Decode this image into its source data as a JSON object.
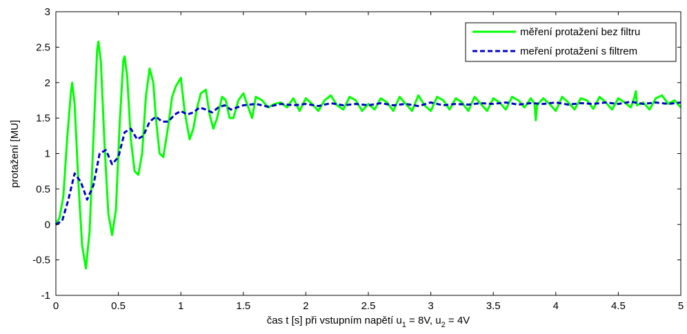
{
  "chart_data": {
    "type": "line",
    "title": "",
    "xlabel_parts": {
      "main": "čas t [s] při vstupním napětí u",
      "sub1": "1",
      "mid": " = 8V, u",
      "sub2": "2",
      "tail": " = 4V"
    },
    "ylabel": "protažení [MU]",
    "xlim": [
      0,
      5
    ],
    "ylim": [
      -1,
      3
    ],
    "xticks": [
      0,
      0.5,
      1,
      1.5,
      2,
      2.5,
      3,
      3.5,
      4,
      4.5,
      5
    ],
    "yticks": [
      -1,
      -0.5,
      0,
      0.5,
      1,
      1.5,
      2,
      2.5,
      3
    ],
    "xtick_labels": [
      "0",
      "0.5",
      "1",
      "1.5",
      "2",
      "2.5",
      "3",
      "3.5",
      "4",
      "4.5",
      "5"
    ],
    "ytick_labels": [
      "-1",
      "-0.5",
      "0",
      "0.5",
      "1",
      "1.5",
      "2",
      "2.5",
      "3"
    ],
    "grid": false,
    "legend_position": "top-right",
    "series": [
      {
        "name": "měření protažení bez filtru",
        "color": "#00ff00",
        "style": "solid",
        "x": [
          0,
          0.03,
          0.06,
          0.09,
          0.12,
          0.13,
          0.15,
          0.18,
          0.21,
          0.24,
          0.27,
          0.3,
          0.33,
          0.34,
          0.36,
          0.39,
          0.42,
          0.45,
          0.48,
          0.51,
          0.54,
          0.55,
          0.57,
          0.6,
          0.63,
          0.66,
          0.69,
          0.72,
          0.75,
          0.78,
          0.8,
          0.83,
          0.86,
          0.9,
          0.93,
          0.96,
          1.0,
          1.03,
          1.07,
          1.1,
          1.13,
          1.16,
          1.2,
          1.23,
          1.26,
          1.29,
          1.33,
          1.36,
          1.39,
          1.42,
          1.46,
          1.5,
          1.54,
          1.57,
          1.6,
          1.65,
          1.7,
          1.75,
          1.8,
          1.85,
          1.9,
          1.95,
          2.0,
          2.05,
          2.1,
          2.15,
          2.2,
          2.25,
          2.3,
          2.35,
          2.4,
          2.45,
          2.5,
          2.55,
          2.6,
          2.65,
          2.7,
          2.75,
          2.8,
          2.85,
          2.9,
          2.95,
          3.0,
          3.05,
          3.1,
          3.15,
          3.2,
          3.25,
          3.3,
          3.35,
          3.4,
          3.45,
          3.5,
          3.55,
          3.6,
          3.65,
          3.7,
          3.75,
          3.8,
          3.83,
          3.84,
          3.85,
          3.9,
          3.95,
          4.0,
          4.05,
          4.1,
          4.15,
          4.2,
          4.25,
          4.3,
          4.35,
          4.4,
          4.45,
          4.5,
          4.55,
          4.6,
          4.63,
          4.64,
          4.65,
          4.7,
          4.75,
          4.8,
          4.85,
          4.9,
          4.95,
          5.0
        ],
        "y": [
          0.0,
          0.1,
          0.4,
          1.2,
          1.85,
          2.0,
          1.7,
          0.6,
          -0.3,
          -0.62,
          -0.1,
          1.2,
          2.45,
          2.58,
          2.3,
          1.1,
          0.15,
          -0.15,
          0.2,
          1.4,
          2.32,
          2.37,
          2.1,
          1.2,
          0.75,
          0.7,
          1.0,
          1.8,
          2.2,
          2.0,
          1.5,
          1.0,
          0.95,
          1.4,
          1.8,
          1.95,
          2.07,
          1.6,
          1.2,
          1.35,
          1.65,
          1.85,
          1.9,
          1.55,
          1.35,
          1.5,
          1.8,
          1.75,
          1.5,
          1.5,
          1.75,
          1.85,
          1.65,
          1.5,
          1.8,
          1.75,
          1.65,
          1.7,
          1.72,
          1.65,
          1.78,
          1.6,
          1.78,
          1.7,
          1.6,
          1.75,
          1.82,
          1.68,
          1.62,
          1.8,
          1.75,
          1.6,
          1.7,
          1.62,
          1.78,
          1.72,
          1.6,
          1.8,
          1.7,
          1.6,
          1.82,
          1.68,
          1.6,
          1.8,
          1.75,
          1.62,
          1.78,
          1.72,
          1.6,
          1.8,
          1.7,
          1.6,
          1.78,
          1.72,
          1.62,
          1.8,
          1.75,
          1.65,
          1.78,
          1.7,
          1.47,
          1.68,
          1.78,
          1.7,
          1.6,
          1.8,
          1.72,
          1.62,
          1.78,
          1.75,
          1.63,
          1.8,
          1.72,
          1.62,
          1.78,
          1.72,
          1.65,
          1.8,
          1.88,
          1.68,
          1.72,
          1.62,
          1.78,
          1.82,
          1.7,
          1.75,
          1.65
        ]
      },
      {
        "name": "meření protažení s filtrem",
        "color": "#0000cc",
        "style": "dashed",
        "x": [
          0,
          0.05,
          0.1,
          0.15,
          0.2,
          0.25,
          0.3,
          0.35,
          0.4,
          0.45,
          0.5,
          0.55,
          0.6,
          0.65,
          0.7,
          0.75,
          0.8,
          0.85,
          0.9,
          0.95,
          1.0,
          1.05,
          1.1,
          1.15,
          1.2,
          1.25,
          1.3,
          1.35,
          1.4,
          1.45,
          1.5,
          1.6,
          1.7,
          1.8,
          1.9,
          2.0,
          2.1,
          2.2,
          2.3,
          2.4,
          2.5,
          2.6,
          2.7,
          2.8,
          2.9,
          3.0,
          3.1,
          3.2,
          3.3,
          3.4,
          3.5,
          3.6,
          3.7,
          3.8,
          3.9,
          4.0,
          4.1,
          4.2,
          4.3,
          4.4,
          4.5,
          4.6,
          4.7,
          4.8,
          4.9,
          5.0
        ],
        "y": [
          0.0,
          0.05,
          0.35,
          0.72,
          0.6,
          0.35,
          0.55,
          1.0,
          1.05,
          0.85,
          0.95,
          1.3,
          1.35,
          1.2,
          1.25,
          1.45,
          1.52,
          1.45,
          1.45,
          1.55,
          1.6,
          1.55,
          1.58,
          1.65,
          1.62,
          1.58,
          1.65,
          1.68,
          1.62,
          1.65,
          1.68,
          1.7,
          1.66,
          1.7,
          1.68,
          1.7,
          1.67,
          1.71,
          1.68,
          1.7,
          1.68,
          1.71,
          1.68,
          1.7,
          1.67,
          1.72,
          1.68,
          1.7,
          1.69,
          1.71,
          1.7,
          1.72,
          1.69,
          1.71,
          1.7,
          1.72,
          1.69,
          1.71,
          1.7,
          1.72,
          1.7,
          1.73,
          1.7,
          1.72,
          1.7,
          1.72
        ]
      }
    ]
  }
}
